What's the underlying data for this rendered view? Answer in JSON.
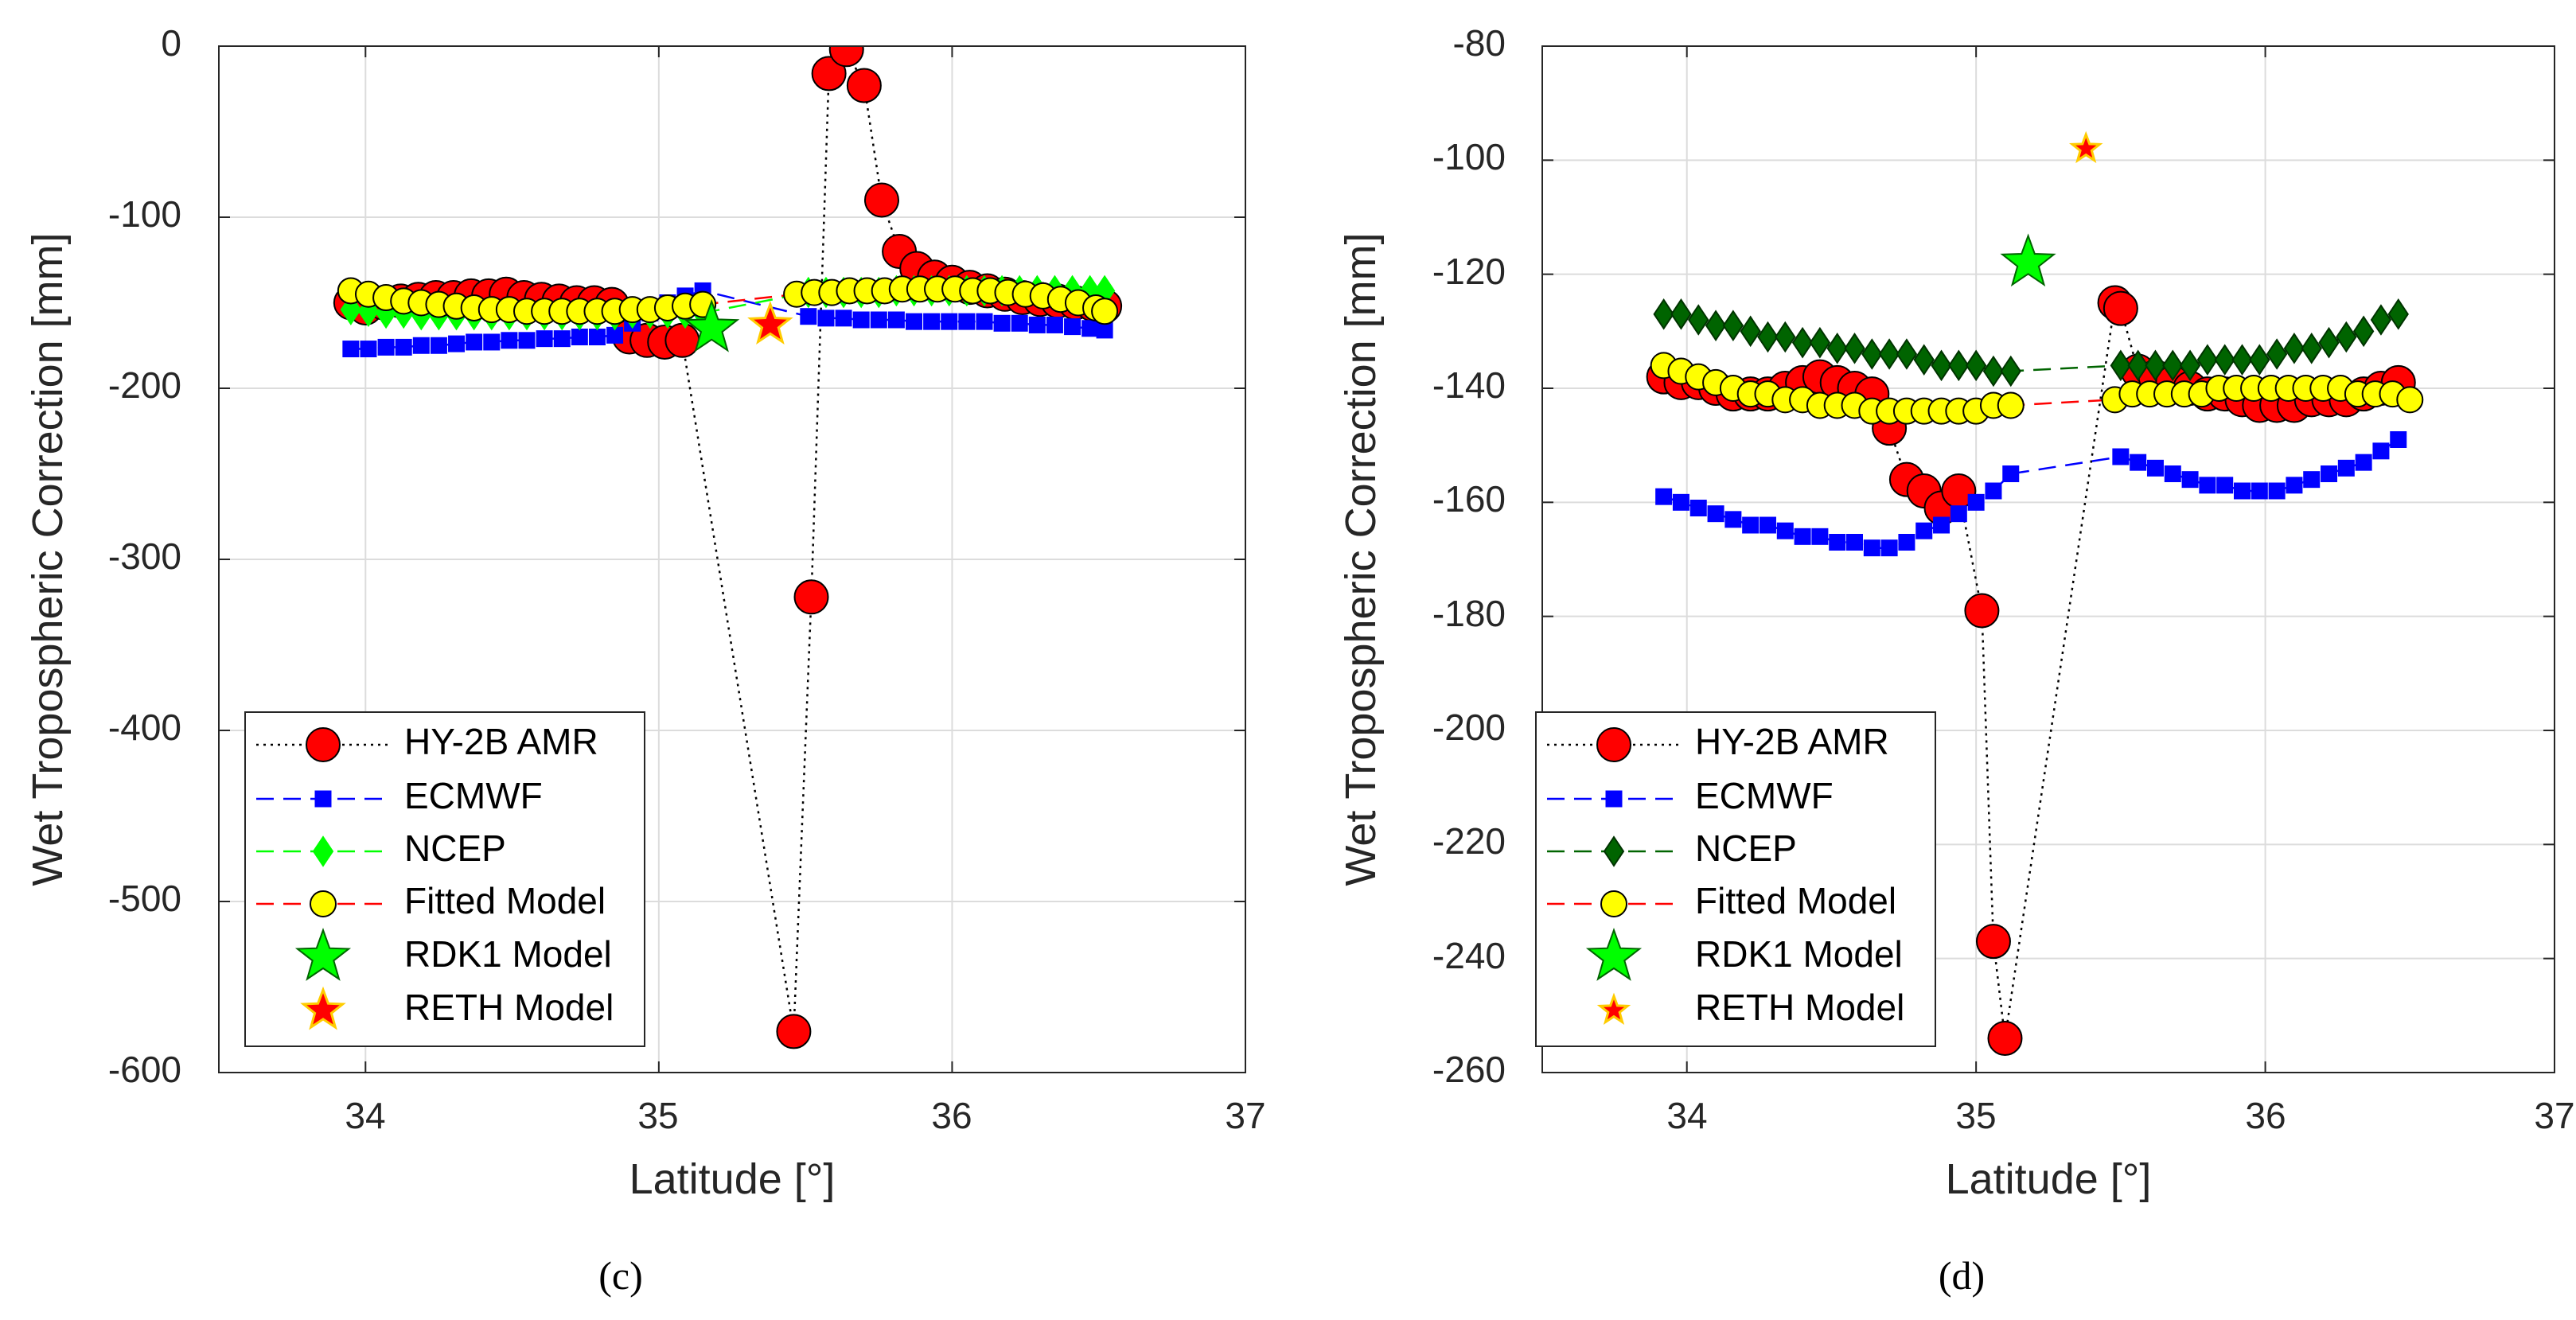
{
  "colors": {
    "amr": "#ff0000",
    "ecmwf": "#0000ff",
    "ncep_c": "#00ff00",
    "ncep_d": "#006400",
    "fitted_fill": "#ffff00",
    "fitted_line": "#ff0000",
    "rdk1": "#00ff00",
    "reth": "#ff0000",
    "reth_edge": "#ffcc00",
    "grid": "#dcdcdc",
    "axis": "#262626"
  },
  "chart_data": [
    {
      "type": "line",
      "caption": "(c)",
      "xlabel": "Latitude [°]",
      "ylabel": "Wet Tropospheric Correction [mm]",
      "xlim": [
        33.5,
        37
      ],
      "ylim": [
        -600,
        0
      ],
      "xticks": [
        34,
        35,
        36,
        37
      ],
      "yticks": [
        0,
        -100,
        -200,
        -300,
        -400,
        -500,
        -600
      ],
      "xtick_labels": [
        "34",
        "35",
        "36",
        "37"
      ],
      "ytick_labels": [
        "0",
        "-100",
        "-200",
        "-300",
        "-400",
        "-500",
        "-600"
      ],
      "grid": true,
      "legend_position": "bottom-left",
      "legend": [
        "HY-2B AMR",
        "ECMWF",
        "NCEP",
        "Fitted Model",
        "RDK1 Model",
        "RETH Model"
      ],
      "series": [
        {
          "name": "HY-2B AMR",
          "x": [
            33.95,
            34.0,
            34.06,
            34.12,
            34.18,
            34.24,
            34.3,
            34.36,
            34.42,
            34.48,
            34.54,
            34.6,
            34.66,
            34.72,
            34.78,
            34.84,
            34.9,
            34.96,
            35.02,
            35.08,
            35.46,
            35.52,
            35.58,
            35.64,
            35.7,
            35.76,
            35.82,
            35.88,
            35.94,
            36.0,
            36.06,
            36.12,
            36.18,
            36.24,
            36.3,
            36.36,
            36.42,
            36.48,
            36.52
          ],
          "y": [
            -150,
            -153,
            -150,
            -149,
            -148,
            -147,
            -147,
            -146,
            -146,
            -145,
            -147,
            -148,
            -149,
            -150,
            -150,
            -151,
            -170,
            -172,
            -173,
            -172,
            -576,
            -322,
            -16,
            -2,
            -23,
            -90,
            -120,
            -130,
            -135,
            -138,
            -141,
            -143,
            -145,
            -147,
            -148,
            -149,
            -150,
            -151,
            -152
          ]
        },
        {
          "name": "ECMWF",
          "x": [
            33.95,
            34.01,
            34.07,
            34.13,
            34.19,
            34.25,
            34.31,
            34.37,
            34.43,
            34.49,
            34.55,
            34.61,
            34.67,
            34.73,
            34.79,
            34.85,
            34.91,
            34.97,
            35.03,
            35.09,
            35.15,
            35.51,
            35.57,
            35.63,
            35.69,
            35.75,
            35.81,
            35.87,
            35.93,
            35.99,
            36.05,
            36.11,
            36.17,
            36.23,
            36.29,
            36.35,
            36.41,
            36.47,
            36.52
          ],
          "y": [
            -177,
            -177,
            -176,
            -176,
            -175,
            -175,
            -174,
            -173,
            -173,
            -172,
            -172,
            -171,
            -171,
            -170,
            -170,
            -169,
            -162,
            -156,
            -150,
            -146,
            -143,
            -158,
            -159,
            -159,
            -160,
            -160,
            -160,
            -161,
            -161,
            -161,
            -161,
            -161,
            -162,
            -162,
            -163,
            -163,
            -164,
            -165,
            -166
          ]
        },
        {
          "name": "NCEP",
          "x": [
            33.95,
            34.01,
            34.07,
            34.13,
            34.19,
            34.25,
            34.31,
            34.37,
            34.43,
            34.49,
            34.55,
            34.61,
            34.67,
            34.73,
            34.79,
            34.85,
            34.91,
            34.97,
            35.03,
            35.09,
            35.15,
            35.51,
            35.57,
            35.63,
            35.69,
            35.75,
            35.81,
            35.87,
            35.93,
            35.99,
            36.05,
            36.11,
            36.17,
            36.23,
            36.29,
            36.35,
            36.41,
            36.47,
            36.52
          ],
          "y": [
            -154,
            -155,
            -156,
            -156,
            -157,
            -157,
            -157,
            -157,
            -157,
            -157,
            -157,
            -157,
            -157,
            -157,
            -157,
            -157,
            -156,
            -156,
            -156,
            -156,
            -156,
            -144,
            -144,
            -144,
            -144,
            -144,
            -143,
            -143,
            -143,
            -143,
            -143,
            -143,
            -143,
            -143,
            -143,
            -143,
            -143,
            -143,
            -143
          ]
        },
        {
          "name": "Fitted Model",
          "x": [
            33.95,
            34.01,
            34.07,
            34.13,
            34.19,
            34.25,
            34.31,
            34.37,
            34.43,
            34.49,
            34.55,
            34.61,
            34.67,
            34.73,
            34.79,
            34.85,
            34.91,
            34.97,
            35.03,
            35.09,
            35.15,
            35.47,
            35.53,
            35.59,
            35.65,
            35.71,
            35.77,
            35.83,
            35.89,
            35.95,
            36.01,
            36.07,
            36.13,
            36.19,
            36.25,
            36.31,
            36.37,
            36.43,
            36.49,
            36.52
          ],
          "y": [
            -143,
            -145,
            -147,
            -149,
            -150,
            -151,
            -152,
            -153,
            -154,
            -154,
            -155,
            -155,
            -155,
            -155,
            -155,
            -155,
            -154,
            -154,
            -153,
            -152,
            -151,
            -145,
            -144,
            -144,
            -143,
            -143,
            -143,
            -142,
            -142,
            -142,
            -142,
            -143,
            -143,
            -144,
            -145,
            -146,
            -148,
            -150,
            -153,
            -155
          ]
        },
        {
          "name": "RDK1 Model",
          "x": [
            35.18
          ],
          "y": [
            -165
          ]
        },
        {
          "name": "RETH Model",
          "x": [
            35.38
          ],
          "y": [
            -163
          ]
        }
      ]
    },
    {
      "type": "line",
      "caption": "(d)",
      "xlabel": "Latitude [°]",
      "ylabel": "Wet Tropospheric Correction [mm]",
      "xlim": [
        33.5,
        37
      ],
      "ylim": [
        -260,
        -80
      ],
      "xticks": [
        34,
        35,
        36,
        37
      ],
      "yticks": [
        -80,
        -100,
        -120,
        -140,
        -160,
        -180,
        -200,
        -220,
        -240,
        -260
      ],
      "xtick_labels": [
        "34",
        "35",
        "36",
        "37"
      ],
      "ytick_labels": [
        "-80",
        "-100",
        "-120",
        "-140",
        "-160",
        "-180",
        "-200",
        "-220",
        "-240",
        "-260"
      ],
      "grid": true,
      "legend_position": "bottom-left",
      "legend": [
        "HY-2B AMR",
        "ECMWF",
        "NCEP",
        "Fitted Model",
        "RDK1 Model",
        "RETH Model"
      ],
      "series": [
        {
          "name": "HY-2B AMR",
          "x": [
            33.92,
            33.98,
            34.04,
            34.1,
            34.16,
            34.22,
            34.28,
            34.34,
            34.4,
            34.46,
            34.52,
            34.58,
            34.64,
            34.7,
            34.76,
            34.82,
            34.88,
            34.94,
            35.02,
            35.06,
            35.1,
            35.48,
            35.5,
            35.56,
            35.62,
            35.68,
            35.74,
            35.8,
            35.86,
            35.92,
            35.98,
            36.04,
            36.1,
            36.16,
            36.22,
            36.28,
            36.34,
            36.4,
            36.46
          ],
          "y": [
            -138,
            -139,
            -139,
            -140,
            -141,
            -141,
            -141,
            -140,
            -139,
            -138,
            -139,
            -140,
            -141,
            -147,
            -156,
            -158,
            -161,
            -158,
            -179,
            -237,
            -254,
            -125,
            -126,
            -137,
            -138,
            -139,
            -140,
            -141,
            -141,
            -142,
            -143,
            -143,
            -143,
            -142,
            -142,
            -142,
            -141,
            -140,
            -139
          ]
        },
        {
          "name": "ECMWF",
          "x": [
            33.92,
            33.98,
            34.04,
            34.1,
            34.16,
            34.22,
            34.28,
            34.34,
            34.4,
            34.46,
            34.52,
            34.58,
            34.64,
            34.7,
            34.76,
            34.82,
            34.88,
            34.94,
            35.0,
            35.06,
            35.12,
            35.5,
            35.56,
            35.62,
            35.68,
            35.74,
            35.8,
            35.86,
            35.92,
            35.98,
            36.04,
            36.1,
            36.16,
            36.22,
            36.28,
            36.34,
            36.4,
            36.46
          ],
          "y": [
            -159,
            -160,
            -161,
            -162,
            -163,
            -164,
            -164,
            -165,
            -166,
            -166,
            -167,
            -167,
            -168,
            -168,
            -167,
            -165,
            -164,
            -162,
            -160,
            -158,
            -155,
            -152,
            -153,
            -154,
            -155,
            -156,
            -157,
            -157,
            -158,
            -158,
            -158,
            -157,
            -156,
            -155,
            -154,
            -153,
            -151,
            -149
          ]
        },
        {
          "name": "NCEP",
          "x": [
            33.92,
            33.98,
            34.04,
            34.1,
            34.16,
            34.22,
            34.28,
            34.34,
            34.4,
            34.46,
            34.52,
            34.58,
            34.64,
            34.7,
            34.76,
            34.82,
            34.88,
            34.94,
            35.0,
            35.06,
            35.12,
            35.5,
            35.56,
            35.62,
            35.68,
            35.74,
            35.8,
            35.86,
            35.92,
            35.98,
            36.04,
            36.1,
            36.16,
            36.22,
            36.28,
            36.34,
            36.4,
            36.46
          ],
          "y": [
            -127,
            -127,
            -128,
            -129,
            -129,
            -130,
            -131,
            -131,
            -132,
            -132,
            -133,
            -133,
            -134,
            -134,
            -134,
            -135,
            -136,
            -136,
            -136,
            -137,
            -137,
            -136,
            -136,
            -136,
            -136,
            -136,
            -135,
            -135,
            -135,
            -135,
            -134,
            -133,
            -133,
            -132,
            -131,
            -130,
            -128,
            -127
          ]
        },
        {
          "name": "Fitted Model",
          "x": [
            33.92,
            33.98,
            34.04,
            34.1,
            34.16,
            34.22,
            34.28,
            34.34,
            34.4,
            34.46,
            34.52,
            34.58,
            34.64,
            34.7,
            34.76,
            34.82,
            34.88,
            34.94,
            35.0,
            35.06,
            35.12,
            35.48,
            35.54,
            35.6,
            35.66,
            35.72,
            35.78,
            35.84,
            35.9,
            35.96,
            36.02,
            36.08,
            36.14,
            36.2,
            36.26,
            36.32,
            36.38,
            36.44,
            36.5
          ],
          "y": [
            -136,
            -137,
            -138,
            -139,
            -140,
            -141,
            -141,
            -142,
            -142,
            -143,
            -143,
            -143,
            -144,
            -144,
            -144,
            -144,
            -144,
            -144,
            -144,
            -143,
            -143,
            -142,
            -141,
            -141,
            -141,
            -141,
            -141,
            -140,
            -140,
            -140,
            -140,
            -140,
            -140,
            -140,
            -140,
            -141,
            -141,
            -141,
            -142
          ]
        },
        {
          "name": "RDK1 Model",
          "x": [
            35.18
          ],
          "y": [
            -118
          ]
        },
        {
          "name": "RETH Model",
          "x": [
            35.38
          ],
          "y": [
            -98
          ]
        }
      ]
    }
  ]
}
